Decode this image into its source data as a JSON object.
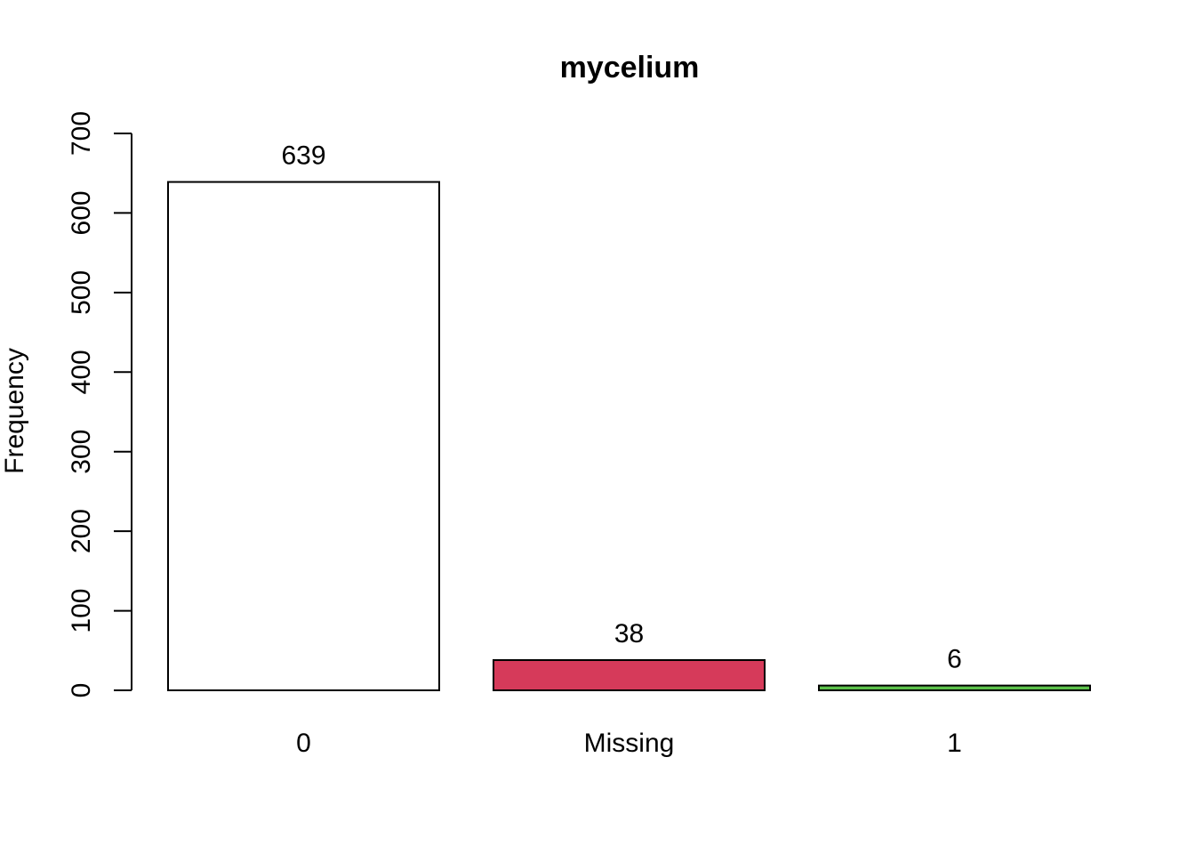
{
  "chart_data": {
    "type": "bar",
    "title": "mycelium",
    "xlabel": "",
    "ylabel": "Frequency",
    "categories": [
      "0",
      "Missing",
      "1"
    ],
    "values": [
      639,
      38,
      6
    ],
    "data_labels": [
      "639",
      "38",
      "6"
    ],
    "bar_colors": [
      "#FFFFFF",
      "#D63A5A",
      "#5CC04A"
    ],
    "ylim": [
      0,
      700
    ],
    "yticks": [
      0,
      100,
      200,
      300,
      400,
      500,
      600,
      700
    ],
    "grid": false,
    "legend": "none"
  }
}
